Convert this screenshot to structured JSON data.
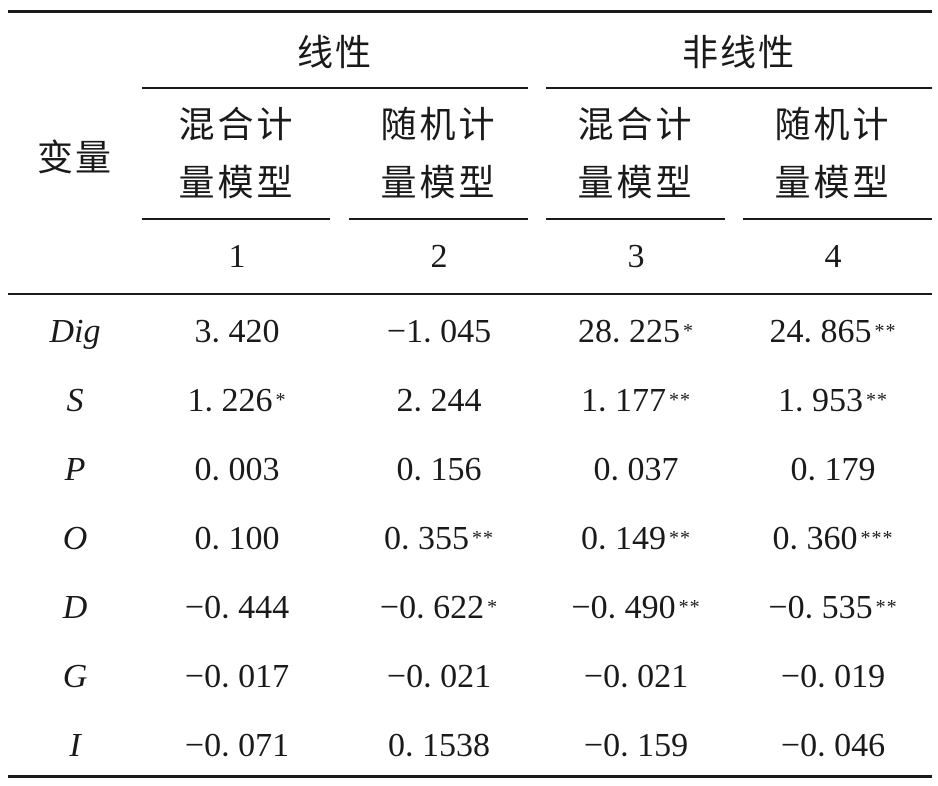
{
  "table": {
    "row_header_label": "变量",
    "groups": [
      {
        "label": "线性"
      },
      {
        "label": "非线性"
      }
    ],
    "models": [
      {
        "line1": "混合计",
        "line2": "量模型",
        "number": "1"
      },
      {
        "line1": "随机计",
        "line2": "量模型",
        "number": "2"
      },
      {
        "line1": "混合计",
        "line2": "量模型",
        "number": "3"
      },
      {
        "line1": "随机计",
        "line2": "量模型",
        "number": "4"
      }
    ],
    "rows": [
      {
        "var": "Dig",
        "cells": [
          {
            "v": "3. 420",
            "s": ""
          },
          {
            "v": "−1. 045",
            "s": ""
          },
          {
            "v": "28. 225",
            "s": "*"
          },
          {
            "v": "24. 865",
            "s": "**"
          }
        ]
      },
      {
        "var": "S",
        "cells": [
          {
            "v": "1. 226",
            "s": "*"
          },
          {
            "v": "2. 244",
            "s": ""
          },
          {
            "v": "1. 177",
            "s": "**"
          },
          {
            "v": "1. 953",
            "s": "**"
          }
        ]
      },
      {
        "var": "P",
        "cells": [
          {
            "v": "0. 003",
            "s": ""
          },
          {
            "v": "0. 156",
            "s": ""
          },
          {
            "v": "0. 037",
            "s": ""
          },
          {
            "v": "0. 179",
            "s": ""
          }
        ]
      },
      {
        "var": "O",
        "cells": [
          {
            "v": "0. 100",
            "s": ""
          },
          {
            "v": "0. 355",
            "s": "**"
          },
          {
            "v": "0. 149",
            "s": "**"
          },
          {
            "v": "0. 360",
            "s": "***"
          }
        ]
      },
      {
        "var": "D",
        "cells": [
          {
            "v": "−0. 444",
            "s": ""
          },
          {
            "v": "−0. 622",
            "s": "*"
          },
          {
            "v": "−0. 490",
            "s": "**"
          },
          {
            "v": "−0. 535",
            "s": "**"
          }
        ]
      },
      {
        "var": "G",
        "cells": [
          {
            "v": "−0. 017",
            "s": ""
          },
          {
            "v": "−0. 021",
            "s": ""
          },
          {
            "v": "−0. 021",
            "s": ""
          },
          {
            "v": "−0. 019",
            "s": ""
          }
        ]
      },
      {
        "var": "I",
        "cells": [
          {
            "v": "−0. 071",
            "s": ""
          },
          {
            "v": "0. 1538",
            "s": ""
          },
          {
            "v": "−0. 159",
            "s": ""
          },
          {
            "v": "−0. 046",
            "s": ""
          }
        ]
      }
    ]
  }
}
